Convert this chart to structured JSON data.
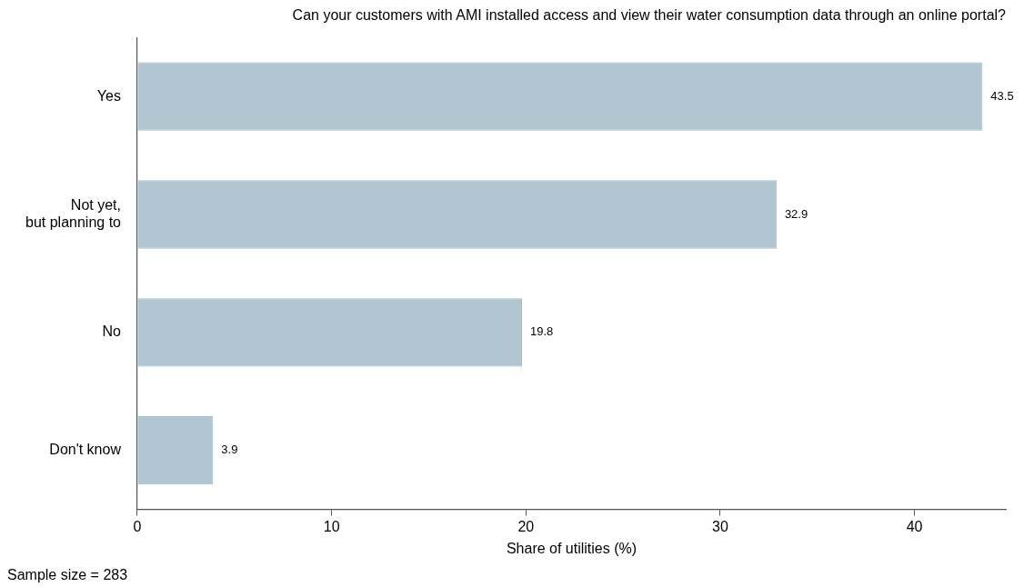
{
  "chart_data": {
    "type": "bar",
    "orientation": "horizontal",
    "title": "Can your customers with AMI installed access and view their water consumption data through an online portal?",
    "xlabel": "Share of utilities (%)",
    "categories": [
      "Yes",
      "Not yet,\nbut planning to",
      "No",
      "Don't know"
    ],
    "values": [
      43.5,
      32.9,
      19.8,
      3.9
    ],
    "color": "#b0c7d1",
    "xlim": [
      0,
      44.7
    ],
    "xticks": [
      0,
      10,
      20,
      30,
      40
    ],
    "grid": false,
    "legend": false,
    "data_labels": true,
    "annotations": [
      "Sample size = 283"
    ]
  }
}
